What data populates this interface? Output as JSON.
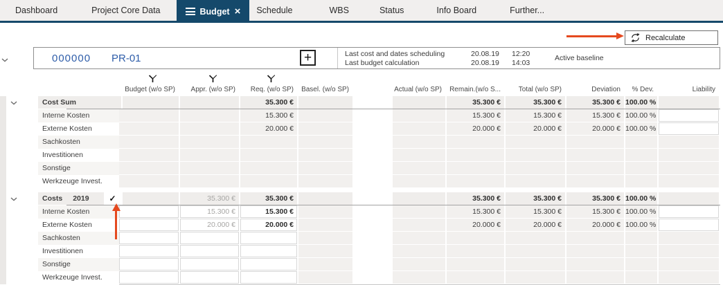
{
  "tabs": [
    {
      "label": "Dashboard",
      "active": false
    },
    {
      "label": "Project Core Data",
      "active": false
    },
    {
      "label": "Budget",
      "active": true
    },
    {
      "label": "Schedule",
      "active": false
    },
    {
      "label": "WBS",
      "active": false
    },
    {
      "label": "Status",
      "active": false
    },
    {
      "label": "Info Board",
      "active": false
    },
    {
      "label": "Further...",
      "active": false
    }
  ],
  "toolbar": {
    "recalculate_label": "Recalculate"
  },
  "project": {
    "id": "000000",
    "code": "PR-01",
    "baseline": "Active baseline",
    "info": [
      {
        "label": "Last cost and dates scheduling",
        "date": "20.08.19",
        "time": "12:20"
      },
      {
        "label": "Last budget calculation",
        "date": "20.08.19",
        "time": "14:03"
      }
    ]
  },
  "icons": {
    "plus_glyph": "+",
    "close_glyph": "×",
    "check_glyph": "✓"
  },
  "colors": {
    "active_tab": "#15496b",
    "annotation_arrow": "#e5491f",
    "project_text": "#2e5da9"
  },
  "table": {
    "columns": [
      {
        "key": "budget",
        "label": "Budget (w/o SP)",
        "filter": true
      },
      {
        "key": "appr",
        "label": "Appr. (w/o SP)",
        "filter": true
      },
      {
        "key": "req",
        "label": "Req. (w/o SP)",
        "filter": true
      },
      {
        "key": "basel",
        "label": "Basel. (w/o SP)",
        "filter": false
      },
      {
        "key": "actual",
        "label": "Actual (w/o SP)",
        "filter": false
      },
      {
        "key": "remain",
        "label": "Remain.(w/o S...",
        "filter": false
      },
      {
        "key": "total",
        "label": "Total (w/o SP)",
        "filter": false
      },
      {
        "key": "deviation",
        "label": "Deviation",
        "filter": false
      },
      {
        "key": "pdev",
        "label": "% Dev.",
        "filter": false
      },
      {
        "key": "liability",
        "label": "Liability",
        "filter": false
      }
    ],
    "groups": [
      {
        "kind": "summary",
        "label": "Cost Sum",
        "year": "",
        "checked": false,
        "values": {
          "req": "35.300 €",
          "remain": "35.300 €",
          "total": "35.300 €",
          "deviation": "35.300 €",
          "pdev": "100.00 %"
        },
        "rows": [
          {
            "label": "Interne Kosten",
            "values": {
              "req": "15.300 €",
              "remain": "15.300 €",
              "total": "15.300 €",
              "deviation": "15.300 €",
              "pdev": "100.00 %"
            }
          },
          {
            "label": "Externe Kosten",
            "values": {
              "req": "20.000 €",
              "remain": "20.000 €",
              "total": "20.000 €",
              "deviation": "20.000 €",
              "pdev": "100.00 %"
            }
          },
          {
            "label": "Sachkosten",
            "values": {}
          },
          {
            "label": "Investitionen",
            "values": {}
          },
          {
            "label": "Sonstige",
            "values": {}
          },
          {
            "label": "Werkzeuge Invest.",
            "values": {}
          }
        ]
      },
      {
        "kind": "period",
        "label": "Costs",
        "year": "2019",
        "checked": true,
        "values": {
          "appr": "35.300 €",
          "req": "35.300 €",
          "remain": "35.300 €",
          "total": "35.300 €",
          "deviation": "35.300 €",
          "pdev": "100.00 %"
        },
        "rows": [
          {
            "label": "Interne Kosten",
            "values": {
              "appr": "15.300 €",
              "req": "15.300 €",
              "remain": "15.300 €",
              "total": "15.300 €",
              "deviation": "15.300 €",
              "pdev": "100.00 %"
            }
          },
          {
            "label": "Externe Kosten",
            "values": {
              "appr": "20.000 €",
              "req": "20.000 €",
              "remain": "20.000 €",
              "total": "20.000 €",
              "deviation": "20.000 €",
              "pdev": "100.00 %"
            }
          },
          {
            "label": "Sachkosten",
            "values": {}
          },
          {
            "label": "Investitionen",
            "values": {}
          },
          {
            "label": "Sonstige",
            "values": {}
          },
          {
            "label": "Werkzeuge Invest.",
            "values": {}
          }
        ]
      }
    ]
  }
}
